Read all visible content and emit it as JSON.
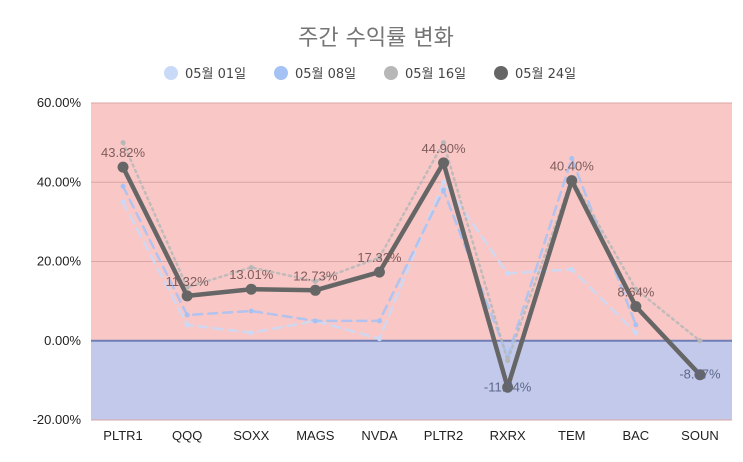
{
  "chart_data": {
    "type": "line",
    "title": "주간 수익률 변화",
    "categories": [
      "PLTR1",
      "QQQ",
      "SOXX",
      "MAGS",
      "NVDA",
      "PLTR2",
      "RXRX",
      "TEM",
      "BAC",
      "SOUN"
    ],
    "ylim": [
      -20,
      60
    ],
    "yticks": [
      -20,
      0,
      20,
      40,
      60
    ],
    "ytick_labels": [
      "-20.00%",
      "0.00%",
      "20.00%",
      "40.00%",
      "60.00%"
    ],
    "legend_position": "top",
    "grid": true,
    "background_bands": {
      "positive": "#f9c8c6",
      "negative": "#c2c9ea",
      "zero_line": "#6f7fb5"
    },
    "series": [
      {
        "name": "05월 01일",
        "color": "#c9daf8",
        "style": "dashed",
        "values": [
          35,
          4,
          2,
          5,
          0.5,
          40,
          17,
          18,
          2,
          null
        ]
      },
      {
        "name": "05월 08일",
        "color": "#a4c2f4",
        "style": "dashed",
        "values": [
          39,
          6.5,
          7.5,
          5,
          5,
          38,
          -4,
          46,
          4,
          null
        ]
      },
      {
        "name": "05월 16일",
        "color": "#b7b7b7",
        "style": "dotted",
        "values": [
          50,
          13.5,
          18.5,
          15,
          21,
          50,
          -5,
          41,
          13,
          0
        ]
      },
      {
        "name": "05월 24일",
        "color": "#666666",
        "style": "solid",
        "values": [
          43.82,
          11.32,
          13.01,
          12.73,
          17.32,
          44.9,
          -11.74,
          40.4,
          8.64,
          -8.57
        ],
        "labels": [
          "43.82%",
          "11.32%",
          "13.01%",
          "12.73%",
          "17.32%",
          "44.90%",
          "-11.74%",
          "40.40%",
          "8.64%",
          "-8.57%"
        ]
      }
    ]
  }
}
